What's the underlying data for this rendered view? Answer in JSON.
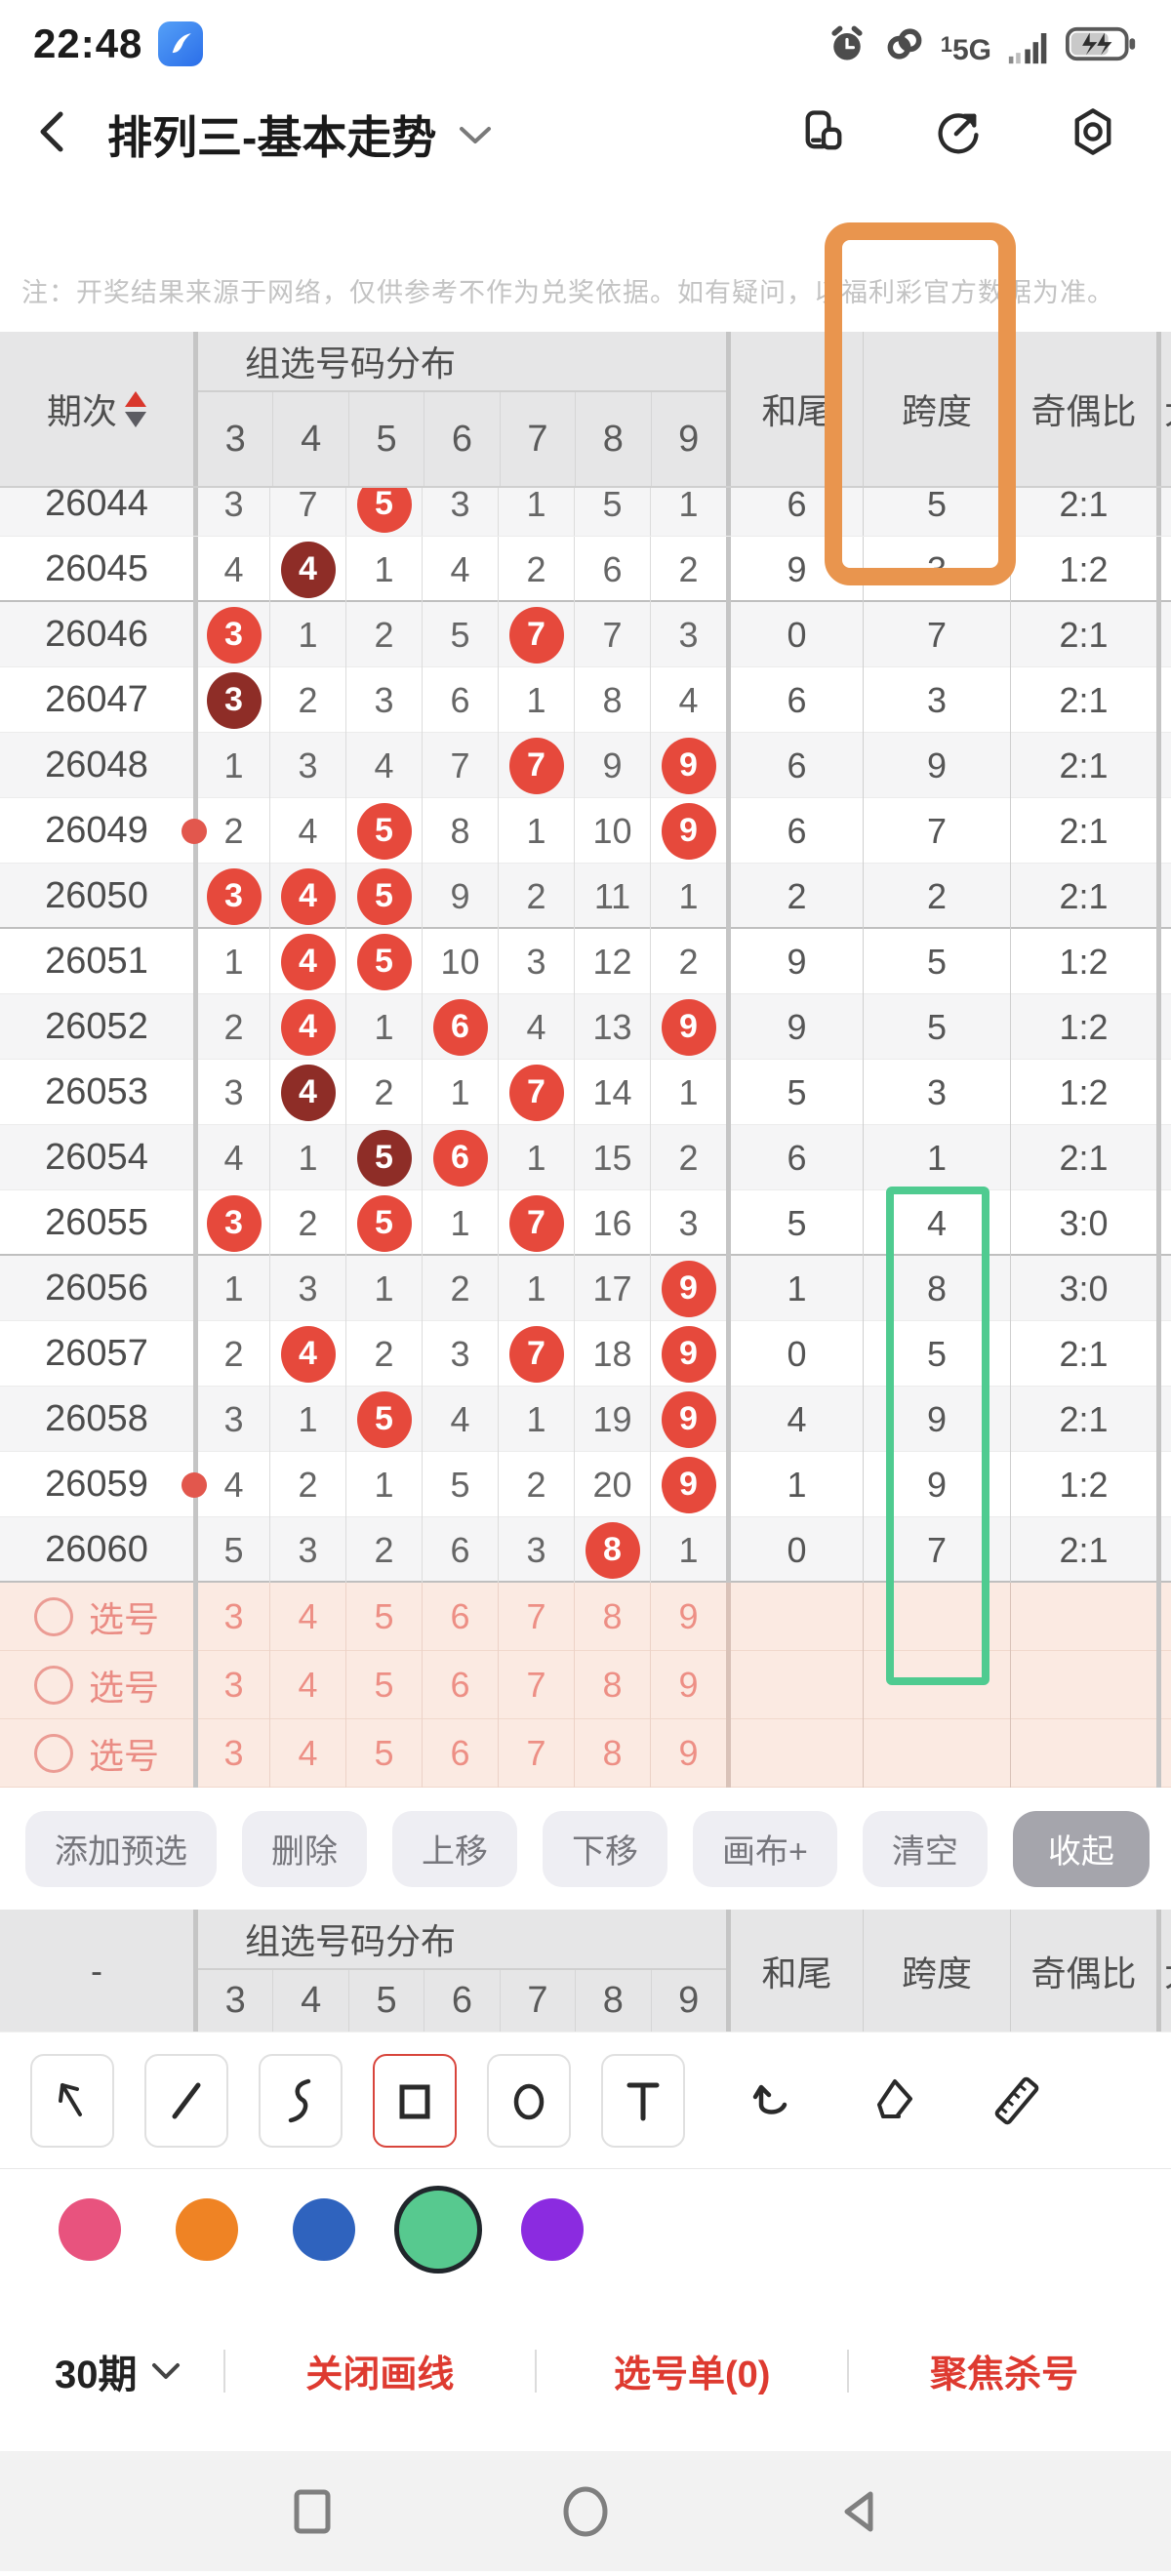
{
  "status_bar": {
    "time": "22:48",
    "sim_index": "1",
    "network": "5G"
  },
  "nav": {
    "title": "排列三-基本走势"
  },
  "disclaimer": "注：开奖结果来源于网络，仅供参考不作为兑奖依据。如有疑问，以福利彩官方数据为准。",
  "table": {
    "headers": {
      "period": "期次",
      "group": "组选号码分布",
      "numbers": [
        "3",
        "4",
        "5",
        "6",
        "7",
        "8",
        "9"
      ],
      "sum_tail": "和尾",
      "span": "跨度",
      "odd_even": "奇偶比",
      "clipped": "大"
    },
    "rows": [
      {
        "p": "26044",
        "n": [
          "3",
          "7",
          "5",
          "3",
          "1",
          "5",
          "1"
        ],
        "m": [
          "",
          "",
          "r",
          "",
          "",
          "",
          ""
        ],
        "t": "6",
        "s": "5",
        "oe": "2:1",
        "clip": true
      },
      {
        "p": "26045",
        "n": [
          "4",
          "4",
          "1",
          "4",
          "2",
          "6",
          "2"
        ],
        "m": [
          "",
          "d",
          "",
          "",
          "",
          "",
          ""
        ],
        "t": "9",
        "s": "3",
        "oe": "1:2",
        "sep": true
      },
      {
        "p": "26046",
        "n": [
          "3",
          "1",
          "2",
          "5",
          "7",
          "7",
          "3"
        ],
        "m": [
          "r",
          "",
          "",
          "",
          "r",
          "",
          ""
        ],
        "t": "0",
        "s": "7",
        "oe": "2:1"
      },
      {
        "p": "26047",
        "n": [
          "3",
          "2",
          "3",
          "6",
          "1",
          "8",
          "4"
        ],
        "m": [
          "d",
          "",
          "",
          "",
          "",
          "",
          ""
        ],
        "t": "6",
        "s": "3",
        "oe": "2:1"
      },
      {
        "p": "26048",
        "n": [
          "1",
          "3",
          "4",
          "7",
          "7",
          "9",
          "9"
        ],
        "m": [
          "",
          "",
          "",
          "",
          "r",
          "",
          "r"
        ],
        "t": "6",
        "s": "9",
        "oe": "2:1"
      },
      {
        "p": "26049",
        "n": [
          "2",
          "4",
          "5",
          "8",
          "1",
          "10",
          "9"
        ],
        "m": [
          "",
          "",
          "r",
          "",
          "",
          "",
          "r"
        ],
        "t": "6",
        "s": "7",
        "oe": "2:1",
        "dot": true
      },
      {
        "p": "26050",
        "n": [
          "3",
          "4",
          "5",
          "9",
          "2",
          "11",
          "1"
        ],
        "m": [
          "r",
          "r",
          "r",
          "",
          "",
          "",
          ""
        ],
        "t": "2",
        "s": "2",
        "oe": "2:1",
        "sep": true
      },
      {
        "p": "26051",
        "n": [
          "1",
          "4",
          "5",
          "10",
          "3",
          "12",
          "2"
        ],
        "m": [
          "",
          "r",
          "r",
          "",
          "",
          "",
          ""
        ],
        "t": "9",
        "s": "5",
        "oe": "1:2"
      },
      {
        "p": "26052",
        "n": [
          "2",
          "4",
          "1",
          "6",
          "4",
          "13",
          "9"
        ],
        "m": [
          "",
          "r",
          "",
          "r",
          "",
          "",
          "r"
        ],
        "t": "9",
        "s": "5",
        "oe": "1:2"
      },
      {
        "p": "26053",
        "n": [
          "3",
          "4",
          "2",
          "1",
          "7",
          "14",
          "1"
        ],
        "m": [
          "",
          "d",
          "",
          "",
          "r",
          "",
          ""
        ],
        "t": "5",
        "s": "3",
        "oe": "1:2"
      },
      {
        "p": "26054",
        "n": [
          "4",
          "1",
          "5",
          "6",
          "1",
          "15",
          "2"
        ],
        "m": [
          "",
          "",
          "d",
          "r",
          "",
          "",
          ""
        ],
        "t": "6",
        "s": "1",
        "oe": "2:1"
      },
      {
        "p": "26055",
        "n": [
          "3",
          "2",
          "5",
          "1",
          "7",
          "16",
          "3"
        ],
        "m": [
          "r",
          "",
          "r",
          "",
          "r",
          "",
          ""
        ],
        "t": "5",
        "s": "4",
        "oe": "3:0",
        "sep": true
      },
      {
        "p": "26056",
        "n": [
          "1",
          "3",
          "1",
          "2",
          "1",
          "17",
          "9"
        ],
        "m": [
          "",
          "",
          "",
          "",
          "",
          "",
          "r"
        ],
        "t": "1",
        "s": "8",
        "oe": "3:0"
      },
      {
        "p": "26057",
        "n": [
          "2",
          "4",
          "2",
          "3",
          "7",
          "18",
          "9"
        ],
        "m": [
          "",
          "r",
          "",
          "",
          "r",
          "",
          "r"
        ],
        "t": "0",
        "s": "5",
        "oe": "2:1"
      },
      {
        "p": "26058",
        "n": [
          "3",
          "1",
          "5",
          "4",
          "1",
          "19",
          "9"
        ],
        "m": [
          "",
          "",
          "r",
          "",
          "",
          "",
          "r"
        ],
        "t": "4",
        "s": "9",
        "oe": "2:1"
      },
      {
        "p": "26059",
        "n": [
          "4",
          "2",
          "1",
          "5",
          "2",
          "20",
          "9"
        ],
        "m": [
          "",
          "",
          "",
          "",
          "",
          "",
          "r"
        ],
        "t": "1",
        "s": "9",
        "oe": "1:2",
        "dot": true
      },
      {
        "p": "26060",
        "n": [
          "5",
          "3",
          "2",
          "6",
          "3",
          "8",
          "1"
        ],
        "m": [
          "",
          "",
          "",
          "",
          "",
          "r",
          ""
        ],
        "t": "0",
        "s": "7",
        "oe": "2:1",
        "sep": true
      }
    ],
    "pick_rows": [
      {
        "label": "选号",
        "numbers": [
          "3",
          "4",
          "5",
          "6",
          "7",
          "8",
          "9"
        ]
      },
      {
        "label": "选号",
        "numbers": [
          "3",
          "4",
          "5",
          "6",
          "7",
          "8",
          "9"
        ]
      },
      {
        "label": "选号",
        "numbers": [
          "3",
          "4",
          "5",
          "6",
          "7",
          "8",
          "9"
        ]
      }
    ]
  },
  "second_header": {
    "period": "-"
  },
  "action_buttons": [
    {
      "key": "add-preselect",
      "label": "添加预选"
    },
    {
      "key": "delete",
      "label": "删除"
    },
    {
      "key": "move-up",
      "label": "上移"
    },
    {
      "key": "move-down",
      "label": "下移"
    },
    {
      "key": "canvas-add",
      "label": "画布+"
    },
    {
      "key": "clear",
      "label": "清空"
    },
    {
      "key": "collapse",
      "label": "收起"
    }
  ],
  "palette": {
    "colors": [
      "#E8537E",
      "#EF8324",
      "#2F63BE",
      "#57C98F",
      "#8B2BE0"
    ],
    "selected_index": 3
  },
  "annotations": {
    "orange_rect_color": "#E9954E",
    "green_rect_color": "#4FCB90"
  },
  "bottom_bar": {
    "period_selector": "30期",
    "links": [
      {
        "key": "close-draw-lines",
        "label": "关闭画线"
      },
      {
        "key": "pick-list",
        "label": "选号单(0)"
      },
      {
        "key": "focus-kill",
        "label": "聚焦杀号"
      }
    ]
  },
  "colors": {
    "ball_red": "#E6493C",
    "ball_dark": "#8E2D27",
    "accent_red_text": "#DE3A30",
    "pink_row_bg": "#FBEAE2",
    "header_bg": "#E6E6E7"
  }
}
